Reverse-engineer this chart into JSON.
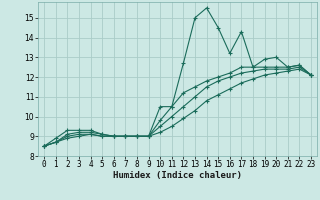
{
  "title": "",
  "xlabel": "Humidex (Indice chaleur)",
  "bg_color": "#cce8e4",
  "grid_color": "#aaccc8",
  "line_color": "#1a6b5a",
  "xlim": [
    -0.5,
    23.5
  ],
  "ylim": [
    8,
    15.8
  ],
  "yticks": [
    8,
    9,
    10,
    11,
    12,
    13,
    14,
    15
  ],
  "xticks": [
    0,
    1,
    2,
    3,
    4,
    5,
    6,
    7,
    8,
    9,
    10,
    11,
    12,
    13,
    14,
    15,
    16,
    17,
    18,
    19,
    20,
    21,
    22,
    23
  ],
  "series": [
    {
      "x": [
        0,
        1,
        2,
        3,
        4,
        5,
        6,
        7,
        8,
        9,
        10,
        11,
        12,
        13,
        14,
        15,
        16,
        17,
        18,
        19,
        20,
        21,
        22,
        23
      ],
      "y": [
        8.5,
        8.9,
        9.3,
        9.3,
        9.3,
        9.1,
        9.0,
        9.0,
        9.0,
        9.0,
        10.5,
        10.5,
        12.7,
        15.0,
        15.5,
        14.5,
        13.2,
        14.3,
        12.5,
        12.9,
        13.0,
        12.5,
        12.6,
        12.1
      ]
    },
    {
      "x": [
        0,
        1,
        2,
        3,
        4,
        5,
        6,
        7,
        8,
        9,
        10,
        11,
        12,
        13,
        14,
        15,
        16,
        17,
        18,
        19,
        20,
        21,
        22,
        23
      ],
      "y": [
        8.5,
        8.7,
        9.1,
        9.2,
        9.2,
        9.1,
        9.0,
        9.0,
        9.0,
        9.0,
        9.8,
        10.5,
        11.2,
        11.5,
        11.8,
        12.0,
        12.2,
        12.5,
        12.5,
        12.5,
        12.5,
        12.5,
        12.6,
        12.1
      ]
    },
    {
      "x": [
        0,
        1,
        2,
        3,
        4,
        5,
        6,
        7,
        8,
        9,
        10,
        11,
        12,
        13,
        14,
        15,
        16,
        17,
        18,
        19,
        20,
        21,
        22,
        23
      ],
      "y": [
        8.5,
        8.7,
        9.0,
        9.1,
        9.1,
        9.0,
        9.0,
        9.0,
        9.0,
        9.0,
        9.5,
        10.0,
        10.5,
        11.0,
        11.5,
        11.8,
        12.0,
        12.2,
        12.3,
        12.4,
        12.4,
        12.4,
        12.5,
        12.1
      ]
    },
    {
      "x": [
        0,
        1,
        2,
        3,
        4,
        5,
        6,
        7,
        8,
        9,
        10,
        11,
        12,
        13,
        14,
        15,
        16,
        17,
        18,
        19,
        20,
        21,
        22,
        23
      ],
      "y": [
        8.5,
        8.7,
        8.9,
        9.0,
        9.1,
        9.0,
        9.0,
        9.0,
        9.0,
        9.0,
        9.2,
        9.5,
        9.9,
        10.3,
        10.8,
        11.1,
        11.4,
        11.7,
        11.9,
        12.1,
        12.2,
        12.3,
        12.4,
        12.1
      ]
    }
  ]
}
